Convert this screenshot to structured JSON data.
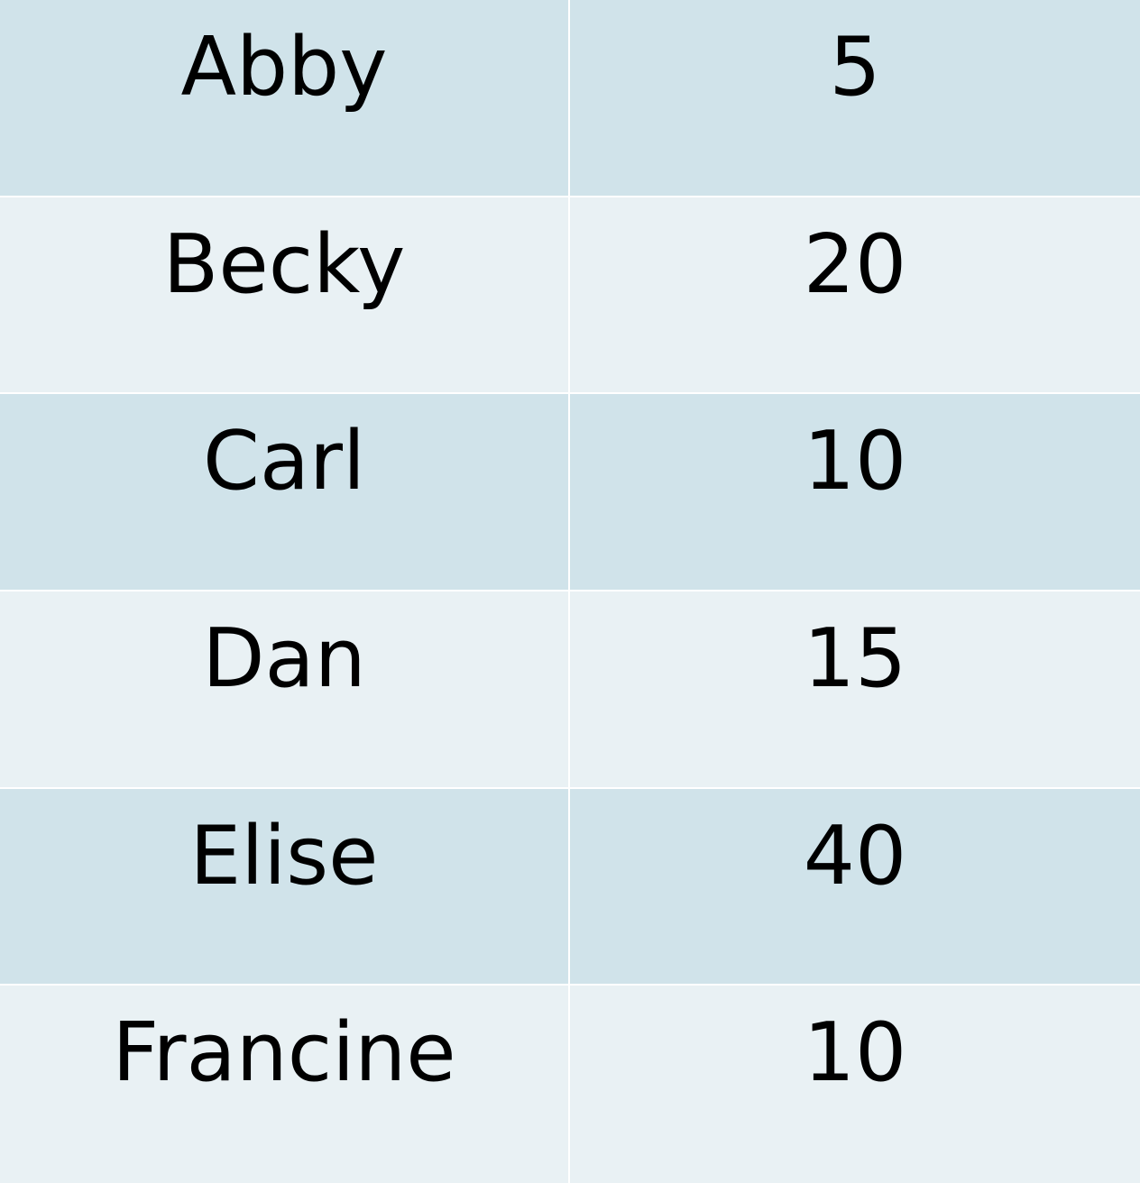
{
  "table": {
    "rows": [
      {
        "name": "Abby",
        "value": "5"
      },
      {
        "name": "Becky",
        "value": "20"
      },
      {
        "name": "Carl",
        "value": "10"
      },
      {
        "name": "Dan",
        "value": "15"
      },
      {
        "name": "Elise",
        "value": "40"
      },
      {
        "name": "Francine",
        "value": "10"
      }
    ]
  },
  "colors": {
    "row_dark": "#d0e3ea",
    "row_light": "#e9f1f4",
    "divider": "#ffffff",
    "text": "#000000"
  }
}
